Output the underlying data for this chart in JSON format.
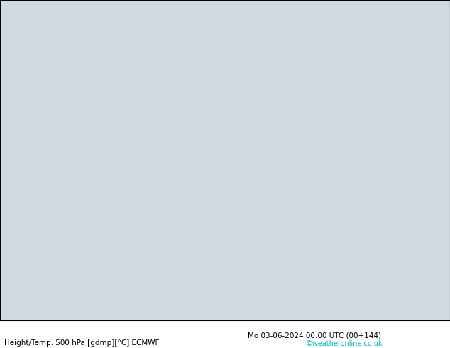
{
  "title_left": "Height/Temp. 500 hPa [gdmp][°C] ECMWF",
  "title_right": "Mo 03-06-2024 00:00 UTC (00+144)",
  "credit": "©weatheronline.co.uk",
  "bg_color": "#f0f0f0",
  "land_color": "#c8e8a0",
  "sea_color": "#d0d8e0",
  "coast_color": "#808080",
  "black_cc": "#000000",
  "orange_cc": "#e08000",
  "red_cc": "#e00000",
  "green_cc": "#40c040",
  "cyan_cc": "#00c0c0",
  "lon_min": 88,
  "lon_max": 162,
  "lat_min": -12,
  "lat_max": 58,
  "fig_w": 6.34,
  "fig_h": 4.9
}
